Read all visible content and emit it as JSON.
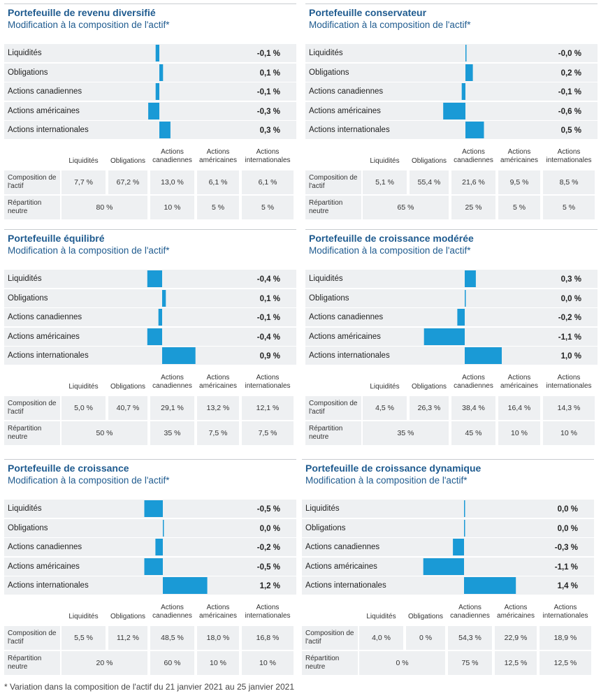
{
  "chart_data": [
    {
      "type": "bar",
      "title": "Portefeuille de revenu diversifié",
      "subtitle": "Modification à la composition de l'actif*",
      "categories": [
        "Liquidités",
        "Obligations",
        "Actions canadiennes",
        "Actions américaines",
        "Actions internationales"
      ],
      "values": [
        -0.1,
        0.1,
        -0.1,
        -0.3,
        0.3
      ],
      "value_labels": [
        "-0,1 %",
        "0,1 %",
        "-0,1 %",
        "-0,3 %",
        "0,3 %"
      ],
      "table": {
        "columns": [
          "Liquidités",
          "Obligations",
          "Actions canadiennes",
          "Actions américaines",
          "Actions internationales"
        ],
        "row_labels": [
          "Composition de l'actif",
          "Répartition neutre"
        ],
        "composition": [
          "7,7 %",
          "67,2 %",
          "13,0 %",
          "6,1 %",
          "6,1 %"
        ],
        "neutral": [
          "80 %",
          "10 %",
          "5 %",
          "5 %"
        ]
      }
    },
    {
      "type": "bar",
      "title": "Portefeuille conservateur",
      "subtitle": "Modification à la composition de l'actif*",
      "categories": [
        "Liquidités",
        "Obligations",
        "Actions canadiennes",
        "Actions américaines",
        "Actions internationales"
      ],
      "values": [
        0.0,
        0.2,
        -0.1,
        -0.6,
        0.5
      ],
      "value_labels": [
        "-0,0 %",
        "0,2 %",
        "-0,1 %",
        "-0,6 %",
        "0,5 %"
      ],
      "table": {
        "columns": [
          "Liquidités",
          "Obligations",
          "Actions canadiennes",
          "Actions américaines",
          "Actions internationales"
        ],
        "row_labels": [
          "Composition de l'actif",
          "Répartition neutre"
        ],
        "composition": [
          "5,1 %",
          "55,4 %",
          "21,6 %",
          "9,5 %",
          "8,5 %"
        ],
        "neutral": [
          "65 %",
          "25 %",
          "5 %",
          "5 %"
        ]
      }
    },
    {
      "type": "bar",
      "title": "Portefeuille équilibré",
      "subtitle": "Modification à la composition de l'actif*",
      "categories": [
        "Liquidités",
        "Obligations",
        "Actions canadiennes",
        "Actions américaines",
        "Actions internationales"
      ],
      "values": [
        -0.4,
        0.1,
        -0.1,
        -0.4,
        0.9
      ],
      "value_labels": [
        "-0,4 %",
        "0,1 %",
        "-0,1 %",
        "-0,4 %",
        "0,9 %"
      ],
      "table": {
        "columns": [
          "Liquidités",
          "Obligations",
          "Actions canadiennes",
          "Actions américaines",
          "Actions internationales"
        ],
        "row_labels": [
          "Composition de l'actif",
          "Répartition neutre"
        ],
        "composition": [
          "5,0 %",
          "40,7 %",
          "29,1 %",
          "13,2 %",
          "12,1 %"
        ],
        "neutral": [
          "50 %",
          "35 %",
          "7,5 %",
          "7,5 %"
        ]
      }
    },
    {
      "type": "bar",
      "title": "Portefeuille de croissance modérée",
      "subtitle": "Modification à la composition de l'actif*",
      "categories": [
        "Liquidités",
        "Obligations",
        "Actions canadiennes",
        "Actions américaines",
        "Actions internationales"
      ],
      "values": [
        0.3,
        0.0,
        -0.2,
        -1.1,
        1.0
      ],
      "value_labels": [
        "0,3 %",
        "0,0 %",
        "-0,2 %",
        "-1,1 %",
        "1,0 %"
      ],
      "table": {
        "columns": [
          "Liquidités",
          "Obligations",
          "Actions canadiennes",
          "Actions américaines",
          "Actions internationales"
        ],
        "row_labels": [
          "Composition de l'actif",
          "Répartition neutre"
        ],
        "composition": [
          "4,5 %",
          "26,3 %",
          "38,4 %",
          "16,4 %",
          "14,3 %"
        ],
        "neutral": [
          "35 %",
          "45 %",
          "10 %",
          "10 %"
        ]
      }
    },
    {
      "type": "bar",
      "title": "Portefeuille de croissance",
      "subtitle": "Modification à la composition de l'actif*",
      "categories": [
        "Liquidités",
        "Obligations",
        "Actions canadiennes",
        "Actions américaines",
        "Actions internationales"
      ],
      "values": [
        -0.5,
        0.0,
        -0.2,
        -0.5,
        1.2
      ],
      "value_labels": [
        "-0,5 %",
        "0,0 %",
        "-0,2 %",
        "-0,5 %",
        "1,2 %"
      ],
      "table": {
        "columns": [
          "Liquidités",
          "Obligations",
          "Actions canadiennes",
          "Actions américaines",
          "Actions internationales"
        ],
        "row_labels": [
          "Composition de l'actif",
          "Répartition neutre"
        ],
        "composition": [
          "5,5 %",
          "11,2 %",
          "48,5 %",
          "18,0 %",
          "16,8 %"
        ],
        "neutral": [
          "20 %",
          "60 %",
          "10 %",
          "10 %"
        ]
      }
    },
    {
      "type": "bar",
      "title": "Portefeuille de croissance dynamique",
      "subtitle": "Modification à la composition de l'actif*",
      "categories": [
        "Liquidités",
        "Obligations",
        "Actions canadiennes",
        "Actions américaines",
        "Actions internationales"
      ],
      "values": [
        0.0,
        0.0,
        -0.3,
        -1.1,
        1.4
      ],
      "value_labels": [
        "0,0 %",
        "0,0 %",
        "-0,3 %",
        "-1,1 %",
        "1,4 %"
      ],
      "table": {
        "columns": [
          "Liquidités",
          "Obligations",
          "Actions canadiennes",
          "Actions américaines",
          "Actions internationales"
        ],
        "row_labels": [
          "Composition de l'actif",
          "Répartition neutre"
        ],
        "composition": [
          "4,0 %",
          "0 %",
          "54,3 %",
          "22,9 %",
          "18,9 %"
        ],
        "neutral": [
          "0 %",
          "75 %",
          "12,5 %",
          "12,5 %"
        ]
      }
    }
  ],
  "footnote": "* Variation dans la composition de l'actif du 21 janvier 2021 au 25 janvier 2021",
  "colors": {
    "bar": "#1a9ad6",
    "title": "#1f5b8f",
    "row_bg": "#eef0f2"
  }
}
